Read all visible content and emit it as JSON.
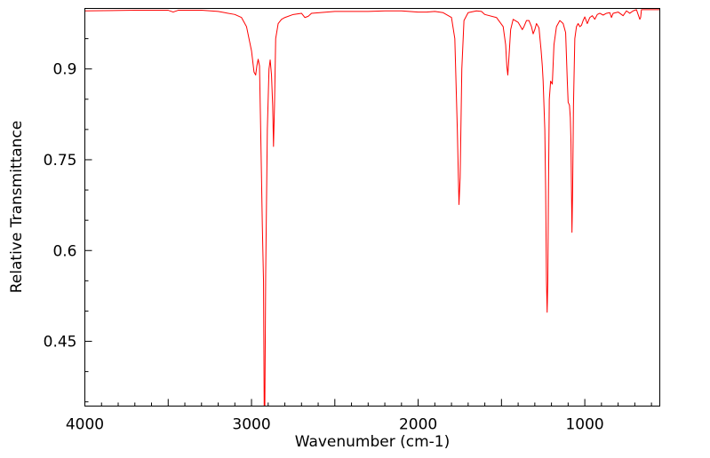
{
  "chart_data": {
    "type": "line",
    "title": "",
    "xlabel": "Wavenumber (cm-1)",
    "ylabel": "Relative Transmittance",
    "xlim": [
      4000,
      550
    ],
    "ylim": [
      0.343,
      1.0
    ],
    "x_ticks": [
      {
        "value": 4000,
        "label": "4000"
      },
      {
        "value": 3000,
        "label": "3000"
      },
      {
        "value": 2000,
        "label": "2000"
      },
      {
        "value": 1000,
        "label": "1000"
      }
    ],
    "y_ticks": [
      {
        "value": 0.9,
        "label": "0.9"
      },
      {
        "value": 0.75,
        "label": "0.75"
      },
      {
        "value": 0.6,
        "label": "0.6"
      },
      {
        "value": 0.45,
        "label": "0.45"
      }
    ],
    "grid": false,
    "legend": "none",
    "series": [
      {
        "color": "#ff0000",
        "points": [
          [
            4000,
            0.996
          ],
          [
            3700,
            0.997
          ],
          [
            3500,
            0.997
          ],
          [
            3470,
            0.994
          ],
          [
            3440,
            0.997
          ],
          [
            3300,
            0.997
          ],
          [
            3200,
            0.995
          ],
          [
            3100,
            0.99
          ],
          [
            3060,
            0.985
          ],
          [
            3030,
            0.97
          ],
          [
            3000,
            0.93
          ],
          [
            2985,
            0.895
          ],
          [
            2975,
            0.89
          ],
          [
            2968,
            0.905
          ],
          [
            2960,
            0.916
          ],
          [
            2952,
            0.905
          ],
          [
            2945,
            0.8
          ],
          [
            2935,
            0.64
          ],
          [
            2928,
            0.55
          ],
          [
            2924,
            0.343
          ],
          [
            2920,
            0.343
          ],
          [
            2915,
            0.56
          ],
          [
            2905,
            0.8
          ],
          [
            2895,
            0.9
          ],
          [
            2888,
            0.915
          ],
          [
            2880,
            0.89
          ],
          [
            2873,
            0.84
          ],
          [
            2868,
            0.772
          ],
          [
            2862,
            0.84
          ],
          [
            2855,
            0.95
          ],
          [
            2840,
            0.975
          ],
          [
            2820,
            0.982
          ],
          [
            2800,
            0.985
          ],
          [
            2750,
            0.99
          ],
          [
            2700,
            0.992
          ],
          [
            2680,
            0.985
          ],
          [
            2660,
            0.987
          ],
          [
            2640,
            0.992
          ],
          [
            2500,
            0.995
          ],
          [
            2300,
            0.995
          ],
          [
            2200,
            0.996
          ],
          [
            2100,
            0.996
          ],
          [
            2000,
            0.994
          ],
          [
            1950,
            0.994
          ],
          [
            1900,
            0.995
          ],
          [
            1850,
            0.993
          ],
          [
            1800,
            0.985
          ],
          [
            1780,
            0.95
          ],
          [
            1765,
            0.8
          ],
          [
            1755,
            0.676
          ],
          [
            1748,
            0.72
          ],
          [
            1738,
            0.9
          ],
          [
            1725,
            0.98
          ],
          [
            1700,
            0.993
          ],
          [
            1650,
            0.996
          ],
          [
            1620,
            0.995
          ],
          [
            1600,
            0.99
          ],
          [
            1530,
            0.985
          ],
          [
            1490,
            0.97
          ],
          [
            1475,
            0.94
          ],
          [
            1468,
            0.905
          ],
          [
            1462,
            0.89
          ],
          [
            1455,
            0.92
          ],
          [
            1445,
            0.965
          ],
          [
            1430,
            0.982
          ],
          [
            1400,
            0.977
          ],
          [
            1385,
            0.97
          ],
          [
            1375,
            0.965
          ],
          [
            1365,
            0.97
          ],
          [
            1350,
            0.98
          ],
          [
            1335,
            0.98
          ],
          [
            1320,
            0.97
          ],
          [
            1310,
            0.958
          ],
          [
            1300,
            0.965
          ],
          [
            1290,
            0.975
          ],
          [
            1275,
            0.968
          ],
          [
            1262,
            0.93
          ],
          [
            1255,
            0.905
          ],
          [
            1250,
            0.88
          ],
          [
            1240,
            0.8
          ],
          [
            1235,
            0.7
          ],
          [
            1230,
            0.55
          ],
          [
            1226,
            0.498
          ],
          [
            1222,
            0.55
          ],
          [
            1218,
            0.7
          ],
          [
            1213,
            0.85
          ],
          [
            1205,
            0.88
          ],
          [
            1195,
            0.875
          ],
          [
            1185,
            0.94
          ],
          [
            1170,
            0.97
          ],
          [
            1150,
            0.98
          ],
          [
            1130,
            0.975
          ],
          [
            1115,
            0.96
          ],
          [
            1110,
            0.92
          ],
          [
            1105,
            0.88
          ],
          [
            1100,
            0.845
          ],
          [
            1092,
            0.84
          ],
          [
            1087,
            0.82
          ],
          [
            1083,
            0.78
          ],
          [
            1080,
            0.7
          ],
          [
            1077,
            0.63
          ],
          [
            1073,
            0.7
          ],
          [
            1068,
            0.84
          ],
          [
            1060,
            0.95
          ],
          [
            1050,
            0.97
          ],
          [
            1040,
            0.975
          ],
          [
            1030,
            0.97
          ],
          [
            1020,
            0.972
          ],
          [
            1010,
            0.98
          ],
          [
            1000,
            0.986
          ],
          [
            985,
            0.975
          ],
          [
            970,
            0.985
          ],
          [
            955,
            0.988
          ],
          [
            940,
            0.982
          ],
          [
            925,
            0.99
          ],
          [
            910,
            0.992
          ],
          [
            890,
            0.989
          ],
          [
            870,
            0.992
          ],
          [
            850,
            0.993
          ],
          [
            840,
            0.985
          ],
          [
            830,
            0.992
          ],
          [
            800,
            0.994
          ],
          [
            770,
            0.988
          ],
          [
            750,
            0.996
          ],
          [
            730,
            0.992
          ],
          [
            710,
            0.996
          ],
          [
            690,
            0.998
          ],
          [
            680,
            0.99
          ],
          [
            670,
            0.982
          ],
          [
            665,
            0.985
          ],
          [
            660,
            0.998
          ],
          [
            640,
            0.998
          ],
          [
            600,
            0.998
          ],
          [
            550,
            0.998
          ]
        ]
      }
    ]
  }
}
